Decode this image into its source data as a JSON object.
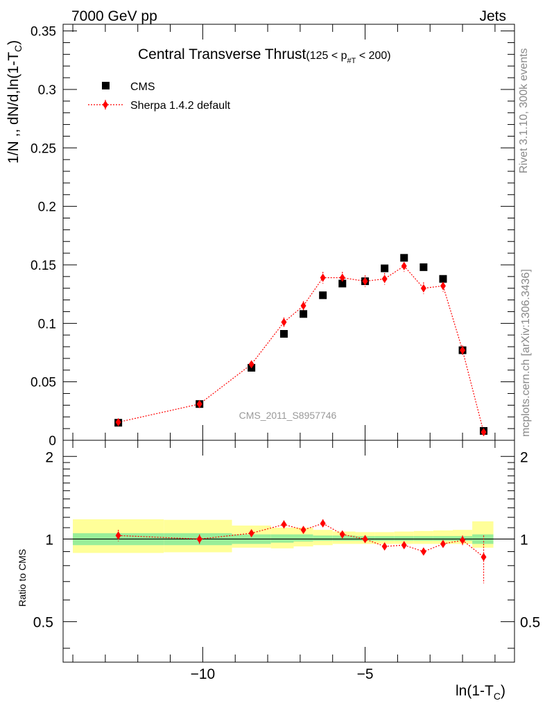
{
  "header": {
    "left": "7000 GeV pp",
    "right": "Jets"
  },
  "side": {
    "rivet": "Rivet 3.1.10,  300k events",
    "mcplots": "mcplots.cern.ch [arXiv:1306.3436]"
  },
  "chart_data": {
    "type": "scatter",
    "title_main": "Central Transverse Thrust",
    "title_cut": "(125 < p",
    "title_cut_sub": "#T",
    "title_cut_end": " < 200)",
    "watermark": "CMS_2011_S8957746",
    "ylabel": "1/N ,, dN/d,ln(1-T",
    "ylabel_sub": "C",
    "ylabel_end": ")",
    "xlabel": "ln(1-T",
    "xlabel_sub": "C",
    "xlabel_end": ")",
    "ratio_ylabel": "Ratio to CMS",
    "xlim": [
      -14.3,
      -0.4
    ],
    "ylim": [
      0,
      0.3557
    ],
    "ratio_ylim": [
      0.356,
      2.29
    ],
    "x_ticks": [
      -10,
      -5
    ],
    "x_tick_labels": [
      "−10",
      "−5"
    ],
    "y_ticks": [
      0,
      0.05,
      0.1,
      0.15,
      0.2,
      0.25,
      0.3,
      0.35
    ],
    "y_tick_labels": [
      "0",
      "0.05",
      "0.1",
      "0.15",
      "0.2",
      "0.25",
      "0.3",
      "0.35"
    ],
    "ratio_y_ticks": [
      0.5,
      1,
      2
    ],
    "ratio_y_tick_labels": [
      "0.5",
      "1",
      "2"
    ],
    "legend": [
      "CMS",
      "Sherpa 1.4.2 default"
    ],
    "series": [
      {
        "name": "CMS",
        "color": "#000000",
        "x": [
          -12.6,
          -10.1,
          -8.5,
          -7.5,
          -6.9,
          -6.3,
          -5.7,
          -5.0,
          -4.4,
          -3.8,
          -3.2,
          -2.6,
          -2.0,
          -1.35
        ],
        "y": [
          0.015,
          0.031,
          0.062,
          0.091,
          0.108,
          0.124,
          0.134,
          0.136,
          0.147,
          0.156,
          0.148,
          0.138,
          0.077,
          0.008
        ]
      },
      {
        "name": "Sherpa 1.4.2 default",
        "color": "#ff0000",
        "x": [
          -12.6,
          -10.1,
          -8.5,
          -7.5,
          -6.9,
          -6.3,
          -5.7,
          -5.0,
          -4.4,
          -3.8,
          -3.2,
          -2.6,
          -2.0,
          -1.35
        ],
        "y": [
          0.0155,
          0.031,
          0.065,
          0.101,
          0.115,
          0.139,
          0.139,
          0.136,
          0.138,
          0.149,
          0.13,
          0.132,
          0.077,
          0.007
        ],
        "yerr": [
          0.0015,
          0.0015,
          0.002,
          0.004,
          0.004,
          0.005,
          0.005,
          0.005,
          0.005,
          0.005,
          0.005,
          0.005,
          0.004,
          0.001
        ],
        "ratio": [
          1.03,
          1.0,
          1.05,
          1.13,
          1.08,
          1.14,
          1.04,
          1.0,
          0.94,
          0.95,
          0.9,
          0.96,
          0.99,
          0.86
        ],
        "ratio_err": [
          0.05,
          0.04,
          0.03,
          0.04,
          0.03,
          0.04,
          0.03,
          0.03,
          0.03,
          0.03,
          0.03,
          0.03,
          0.04,
          0.17
        ]
      }
    ],
    "uncertainty_bands": {
      "x_edges": [
        -14.0,
        -11.2,
        -9.1,
        -7.9,
        -7.2,
        -6.6,
        -6.0,
        -5.3,
        -4.7,
        -4.1,
        -3.5,
        -2.9,
        -2.3,
        -1.7,
        -1.05
      ],
      "green": [
        [
          0.95,
          1.05
        ],
        [
          0.95,
          1.05
        ],
        [
          0.96,
          1.04
        ],
        [
          0.97,
          1.04
        ],
        [
          0.98,
          1.04
        ],
        [
          0.985,
          1.03
        ],
        [
          0.985,
          1.03
        ],
        [
          0.985,
          1.025
        ],
        [
          0.985,
          1.025
        ],
        [
          0.985,
          1.025
        ],
        [
          0.985,
          1.025
        ],
        [
          0.985,
          1.025
        ],
        [
          0.985,
          1.025
        ],
        [
          0.96,
          1.04
        ]
      ],
      "yellow": [
        [
          0.89,
          1.18
        ],
        [
          0.895,
          1.175
        ],
        [
          0.93,
          1.12
        ],
        [
          0.925,
          1.1
        ],
        [
          0.94,
          1.1
        ],
        [
          0.95,
          1.08
        ],
        [
          0.96,
          1.065
        ],
        [
          0.96,
          1.06
        ],
        [
          0.96,
          1.06
        ],
        [
          0.96,
          1.065
        ],
        [
          0.96,
          1.07
        ],
        [
          0.96,
          1.075
        ],
        [
          0.96,
          1.08
        ],
        [
          0.93,
          1.16
        ]
      ],
      "green_color": "#99ee99",
      "yellow_color": "#ffff99"
    }
  }
}
